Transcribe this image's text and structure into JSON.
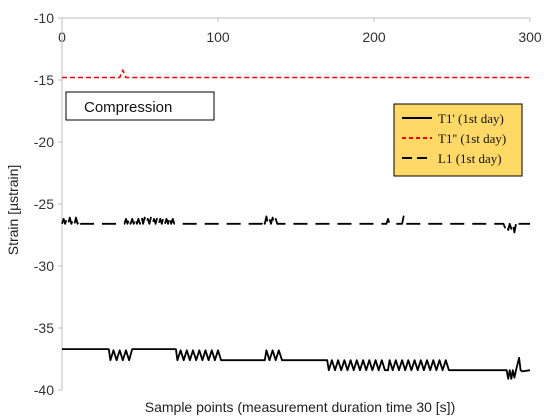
{
  "chart_data": {
    "type": "line",
    "title": "",
    "xlabel": "Sample points (measurement duration time 30 [s])",
    "ylabel": "Strain [µstrain]",
    "xlim": [
      0,
      300
    ],
    "ylim": [
      -40,
      -10
    ],
    "x_ticks": [
      "0",
      "100",
      "200",
      "300"
    ],
    "y_ticks": [
      "-10",
      "-15",
      "-20",
      "-25",
      "-30",
      "-35",
      "-40"
    ],
    "x_axis_position": "top",
    "grid": false,
    "annotation": "Compression",
    "legend_position": "right",
    "legend_bg": "#ffd966",
    "series": [
      {
        "name": "T1' (1st day)",
        "color": "#000000",
        "style": "solid",
        "baseline_segments": [
          [
            0,
            300,
            -38.0
          ]
        ],
        "points": [
          [
            0,
            -36.7
          ],
          [
            30,
            -36.7
          ],
          [
            31,
            -37.6
          ],
          [
            33,
            -36.8
          ],
          [
            35,
            -37.6
          ],
          [
            37,
            -36.8
          ],
          [
            39,
            -37.6
          ],
          [
            41,
            -36.8
          ],
          [
            43,
            -37.6
          ],
          [
            45,
            -36.7
          ],
          [
            73,
            -36.7
          ],
          [
            74,
            -37.6
          ],
          [
            76,
            -36.8
          ],
          [
            78,
            -37.6
          ],
          [
            80,
            -36.8
          ],
          [
            82,
            -37.6
          ],
          [
            84,
            -36.8
          ],
          [
            86,
            -37.6
          ],
          [
            88,
            -36.8
          ],
          [
            90,
            -37.6
          ],
          [
            92,
            -36.8
          ],
          [
            94,
            -37.6
          ],
          [
            96,
            -36.8
          ],
          [
            98,
            -37.6
          ],
          [
            100,
            -36.8
          ],
          [
            102,
            -37.6
          ],
          [
            130,
            -37.6
          ],
          [
            131,
            -36.8
          ],
          [
            133,
            -37.6
          ],
          [
            135,
            -36.8
          ],
          [
            137,
            -37.6
          ],
          [
            139,
            -36.8
          ],
          [
            141,
            -37.6
          ],
          [
            170,
            -37.6
          ],
          [
            171,
            -38.4
          ],
          [
            173,
            -37.6
          ],
          [
            175,
            -38.4
          ],
          [
            177,
            -37.6
          ],
          [
            179,
            -38.4
          ],
          [
            181,
            -37.6
          ],
          [
            183,
            -38.4
          ],
          [
            185,
            -37.6
          ],
          [
            187,
            -38.4
          ],
          [
            189,
            -37.6
          ],
          [
            191,
            -38.4
          ],
          [
            193,
            -37.6
          ],
          [
            195,
            -38.4
          ],
          [
            197,
            -37.6
          ],
          [
            199,
            -38.4
          ],
          [
            201,
            -37.6
          ],
          [
            203,
            -38.4
          ],
          [
            205,
            -37.6
          ],
          [
            207,
            -38.4
          ],
          [
            209,
            -38.4
          ],
          [
            210,
            -37.6
          ],
          [
            212,
            -38.4
          ],
          [
            214,
            -37.6
          ],
          [
            216,
            -38.4
          ],
          [
            218,
            -37.6
          ],
          [
            220,
            -38.4
          ],
          [
            222,
            -37.6
          ],
          [
            224,
            -38.4
          ],
          [
            226,
            -37.6
          ],
          [
            228,
            -38.4
          ],
          [
            230,
            -37.6
          ],
          [
            232,
            -38.4
          ],
          [
            234,
            -37.6
          ],
          [
            236,
            -38.4
          ],
          [
            238,
            -37.6
          ],
          [
            240,
            -38.4
          ],
          [
            242,
            -37.6
          ],
          [
            244,
            -38.4
          ],
          [
            246,
            -37.6
          ],
          [
            248,
            -38.4
          ],
          [
            285,
            -38.4
          ],
          [
            286,
            -39.1
          ],
          [
            287,
            -38.4
          ],
          [
            288,
            -39.1
          ],
          [
            289,
            -38.4
          ],
          [
            290,
            -39.0
          ],
          [
            291,
            -38.4
          ],
          [
            293,
            -37.4
          ],
          [
            294,
            -38.4
          ],
          [
            295,
            -38.5
          ],
          [
            300,
            -38.4
          ]
        ]
      },
      {
        "name": "T1'' (1st day)",
        "color": "#ff0000",
        "style": "dashed",
        "points": [
          [
            0,
            -14.8
          ],
          [
            37,
            -14.8
          ],
          [
            38,
            -14.5
          ],
          [
            39,
            -14.2
          ],
          [
            40,
            -14.5
          ],
          [
            41,
            -14.8
          ],
          [
            300,
            -14.8
          ]
        ]
      },
      {
        "name": "L1 (1st day)",
        "color": "#000000",
        "style": "longdash",
        "points": [
          [
            0,
            -26.6
          ],
          [
            1,
            -26.2
          ],
          [
            2,
            -26.6
          ],
          [
            3,
            -26.2
          ],
          [
            4,
            -26.6
          ],
          [
            5,
            -26.1
          ],
          [
            6,
            -26.6
          ],
          [
            7,
            -26.2
          ],
          [
            8,
            -26.6
          ],
          [
            9,
            -26.1
          ],
          [
            10,
            -26.6
          ],
          [
            11,
            -26.2
          ],
          [
            12,
            -26.6
          ],
          [
            40,
            -26.6
          ],
          [
            41,
            -26.2
          ],
          [
            42,
            -26.6
          ],
          [
            43,
            -26.1
          ],
          [
            44,
            -26.6
          ],
          [
            45,
            -26.2
          ],
          [
            46,
            -26.6
          ],
          [
            47,
            -26.1
          ],
          [
            48,
            -26.6
          ],
          [
            49,
            -26.2
          ],
          [
            50,
            -26.6
          ],
          [
            51,
            -26.0
          ],
          [
            52,
            -26.6
          ],
          [
            53,
            -26.1
          ],
          [
            54,
            -26.6
          ],
          [
            55,
            -26.2
          ],
          [
            56,
            -26.6
          ],
          [
            57,
            -26.1
          ],
          [
            58,
            -26.6
          ],
          [
            59,
            -26.2
          ],
          [
            60,
            -26.6
          ],
          [
            61,
            -26.1
          ],
          [
            62,
            -26.6
          ],
          [
            63,
            -26.2
          ],
          [
            64,
            -26.6
          ],
          [
            65,
            -26.1
          ],
          [
            66,
            -26.6
          ],
          [
            67,
            -26.2
          ],
          [
            68,
            -26.6
          ],
          [
            69,
            -26.0
          ],
          [
            70,
            -26.6
          ],
          [
            71,
            -26.2
          ],
          [
            72,
            -26.6
          ],
          [
            128,
            -26.6
          ],
          [
            129,
            -26.2
          ],
          [
            130,
            -26.6
          ],
          [
            131,
            -26.0
          ],
          [
            132,
            -26.6
          ],
          [
            133,
            -26.2
          ],
          [
            134,
            -26.6
          ],
          [
            135,
            -26.1
          ],
          [
            136,
            -26.6
          ],
          [
            137,
            -26.2
          ],
          [
            138,
            -26.6
          ],
          [
            208,
            -26.6
          ],
          [
            209,
            -26.2
          ],
          [
            210,
            -26.6
          ],
          [
            218,
            -26.6
          ],
          [
            219,
            -26.0
          ],
          [
            220,
            -26.6
          ],
          [
            283,
            -26.6
          ],
          [
            284,
            -26.9
          ],
          [
            285,
            -26.6
          ],
          [
            286,
            -27.1
          ],
          [
            287,
            -26.6
          ],
          [
            288,
            -27.0
          ],
          [
            289,
            -26.6
          ],
          [
            290,
            -27.3
          ],
          [
            291,
            -26.6
          ],
          [
            292,
            -26.3
          ],
          [
            293,
            -26.6
          ],
          [
            300,
            -26.6
          ]
        ]
      }
    ]
  }
}
